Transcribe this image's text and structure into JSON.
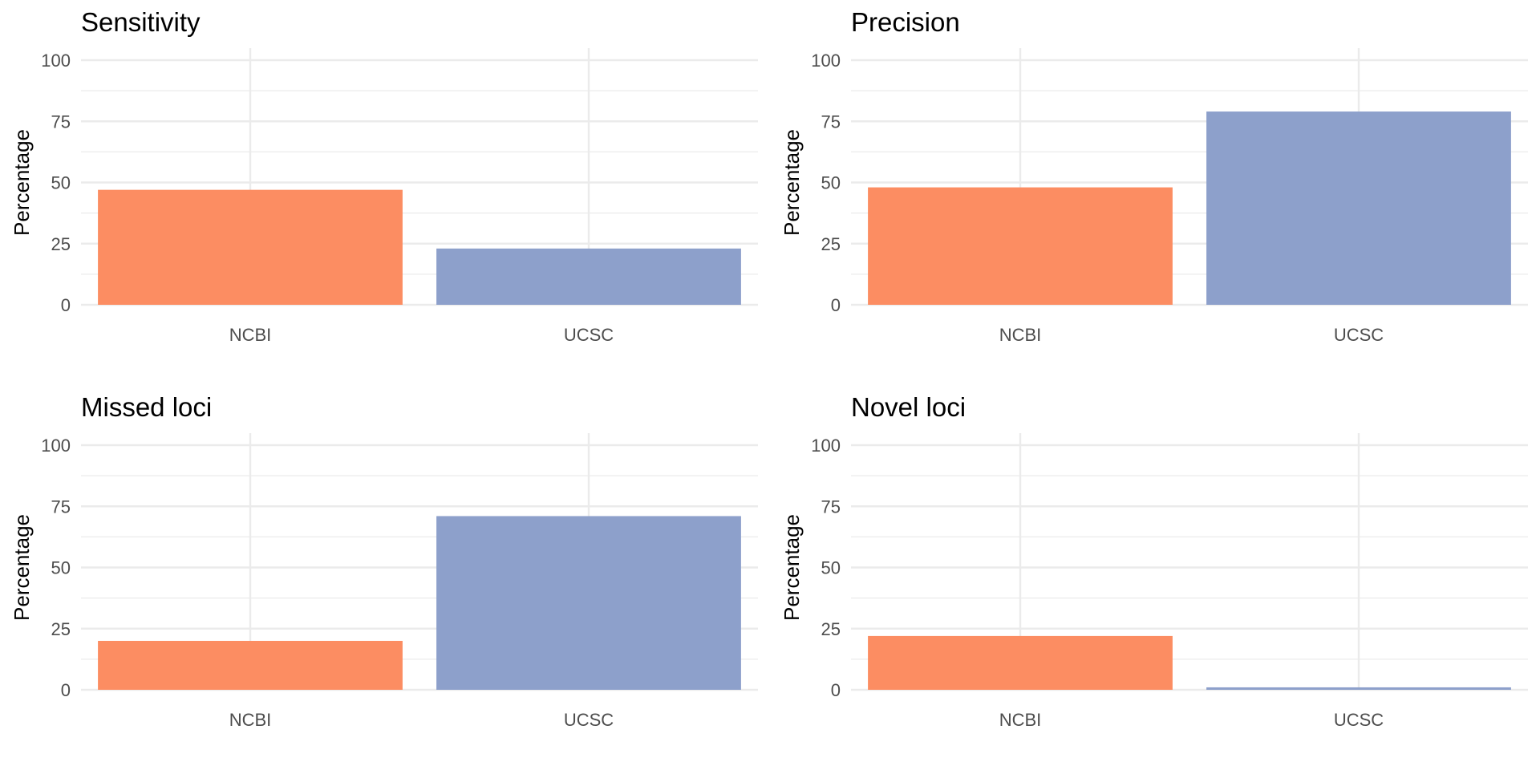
{
  "figure": {
    "layout": "2x2 grid"
  },
  "chart_data": [
    {
      "type": "bar",
      "title": "Sensitivity",
      "xlabel": "",
      "ylabel": "Percentage",
      "categories": [
        "NCBI",
        "UCSC"
      ],
      "values": [
        47,
        23
      ],
      "colors": [
        "#fc8d62",
        "#8da0cb"
      ],
      "ylim": [
        0,
        100
      ],
      "yticks": [
        0,
        25,
        50,
        75,
        100
      ],
      "grid": true,
      "legend": "none"
    },
    {
      "type": "bar",
      "title": "Precision",
      "xlabel": "",
      "ylabel": "Percentage",
      "categories": [
        "NCBI",
        "UCSC"
      ],
      "values": [
        48,
        79
      ],
      "colors": [
        "#fc8d62",
        "#8da0cb"
      ],
      "ylim": [
        0,
        100
      ],
      "yticks": [
        0,
        25,
        50,
        75,
        100
      ],
      "grid": true,
      "legend": "none"
    },
    {
      "type": "bar",
      "title": "Missed loci",
      "xlabel": "",
      "ylabel": "Percentage",
      "categories": [
        "NCBI",
        "UCSC"
      ],
      "values": [
        20,
        71
      ],
      "colors": [
        "#fc8d62",
        "#8da0cb"
      ],
      "ylim": [
        0,
        100
      ],
      "yticks": [
        0,
        25,
        50,
        75,
        100
      ],
      "grid": true,
      "legend": "none"
    },
    {
      "type": "bar",
      "title": "Novel loci",
      "xlabel": "",
      "ylabel": "Percentage",
      "categories": [
        "NCBI",
        "UCSC"
      ],
      "values": [
        22,
        1
      ],
      "colors": [
        "#fc8d62",
        "#8da0cb"
      ],
      "ylim": [
        0,
        100
      ],
      "yticks": [
        0,
        25,
        50,
        75,
        100
      ],
      "grid": true,
      "legend": "none"
    }
  ]
}
